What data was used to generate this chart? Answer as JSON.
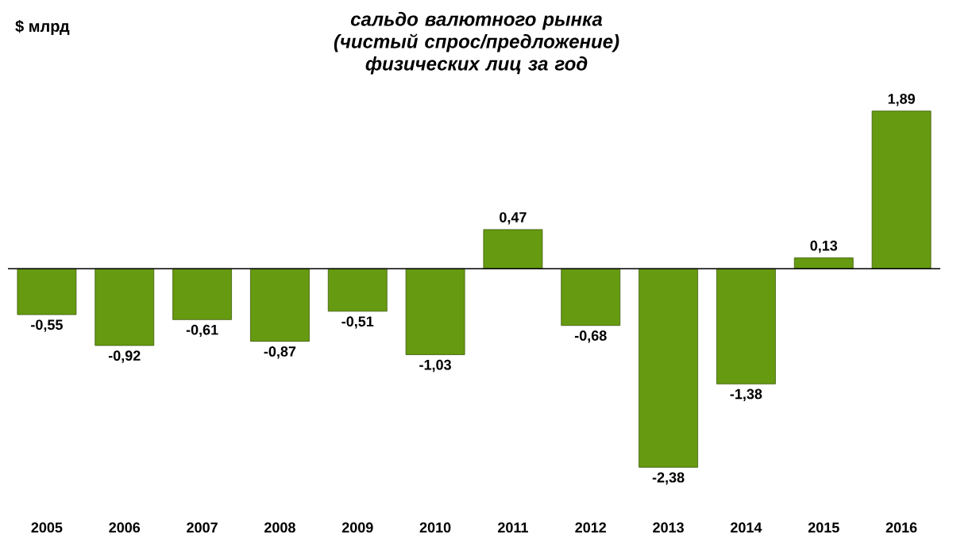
{
  "chart_data": {
    "type": "bar",
    "title": "сальдо валютного рынка (чистый спрос/предложение) физических лиц за год",
    "ylabel": "$ млрд",
    "categories": [
      "2005",
      "2006",
      "2007",
      "2008",
      "2009",
      "2010",
      "2011",
      "2012",
      "2013",
      "2014",
      "2015",
      "2016"
    ],
    "values": [
      -0.55,
      -0.92,
      -0.61,
      -0.87,
      -0.51,
      -1.03,
      0.47,
      -0.68,
      -2.38,
      -1.38,
      0.13,
      1.89
    ],
    "value_labels": [
      "-0,55",
      "-0,92",
      "-0,61",
      "-0,87",
      "-0,51",
      "-1,03",
      "0,47",
      "-0,68",
      "-2,38",
      "-1,38",
      "0,13",
      "1,89"
    ],
    "color": "#669a10"
  }
}
